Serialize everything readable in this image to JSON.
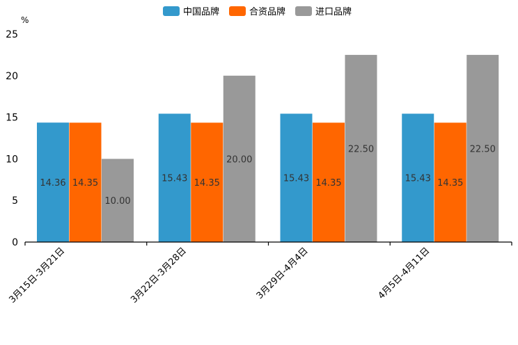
{
  "chart_data": {
    "type": "bar",
    "unit": "%",
    "categories": [
      "3月15日-3月21日",
      "3月22日-3月28日",
      "3月29日-4月4日",
      "4月5日-4月11日"
    ],
    "series": [
      {
        "name": "中国品牌",
        "color": "#3399CC",
        "values": [
          14.36,
          15.43,
          15.43,
          15.43
        ],
        "labels": [
          "14.36",
          "15.43",
          "15.43",
          "15.43"
        ]
      },
      {
        "name": "合资品牌",
        "color": "#FF6600",
        "values": [
          14.35,
          14.35,
          14.35,
          14.35
        ],
        "labels": [
          "14.35",
          "14.35",
          "14.35",
          "14.35"
        ]
      },
      {
        "name": "进口品牌",
        "color": "#999999",
        "values": [
          10.0,
          20.0,
          22.5,
          22.5
        ],
        "labels": [
          "10.00",
          "20.00",
          "22.50",
          "22.50"
        ]
      }
    ],
    "ylim": [
      0,
      25
    ],
    "yticks": [
      0,
      5,
      10,
      15,
      20,
      25
    ],
    "ytick_labels": [
      "0",
      "5",
      "10",
      "15",
      "20",
      "25"
    ],
    "legend_position": "top-center",
    "grid": false
  }
}
